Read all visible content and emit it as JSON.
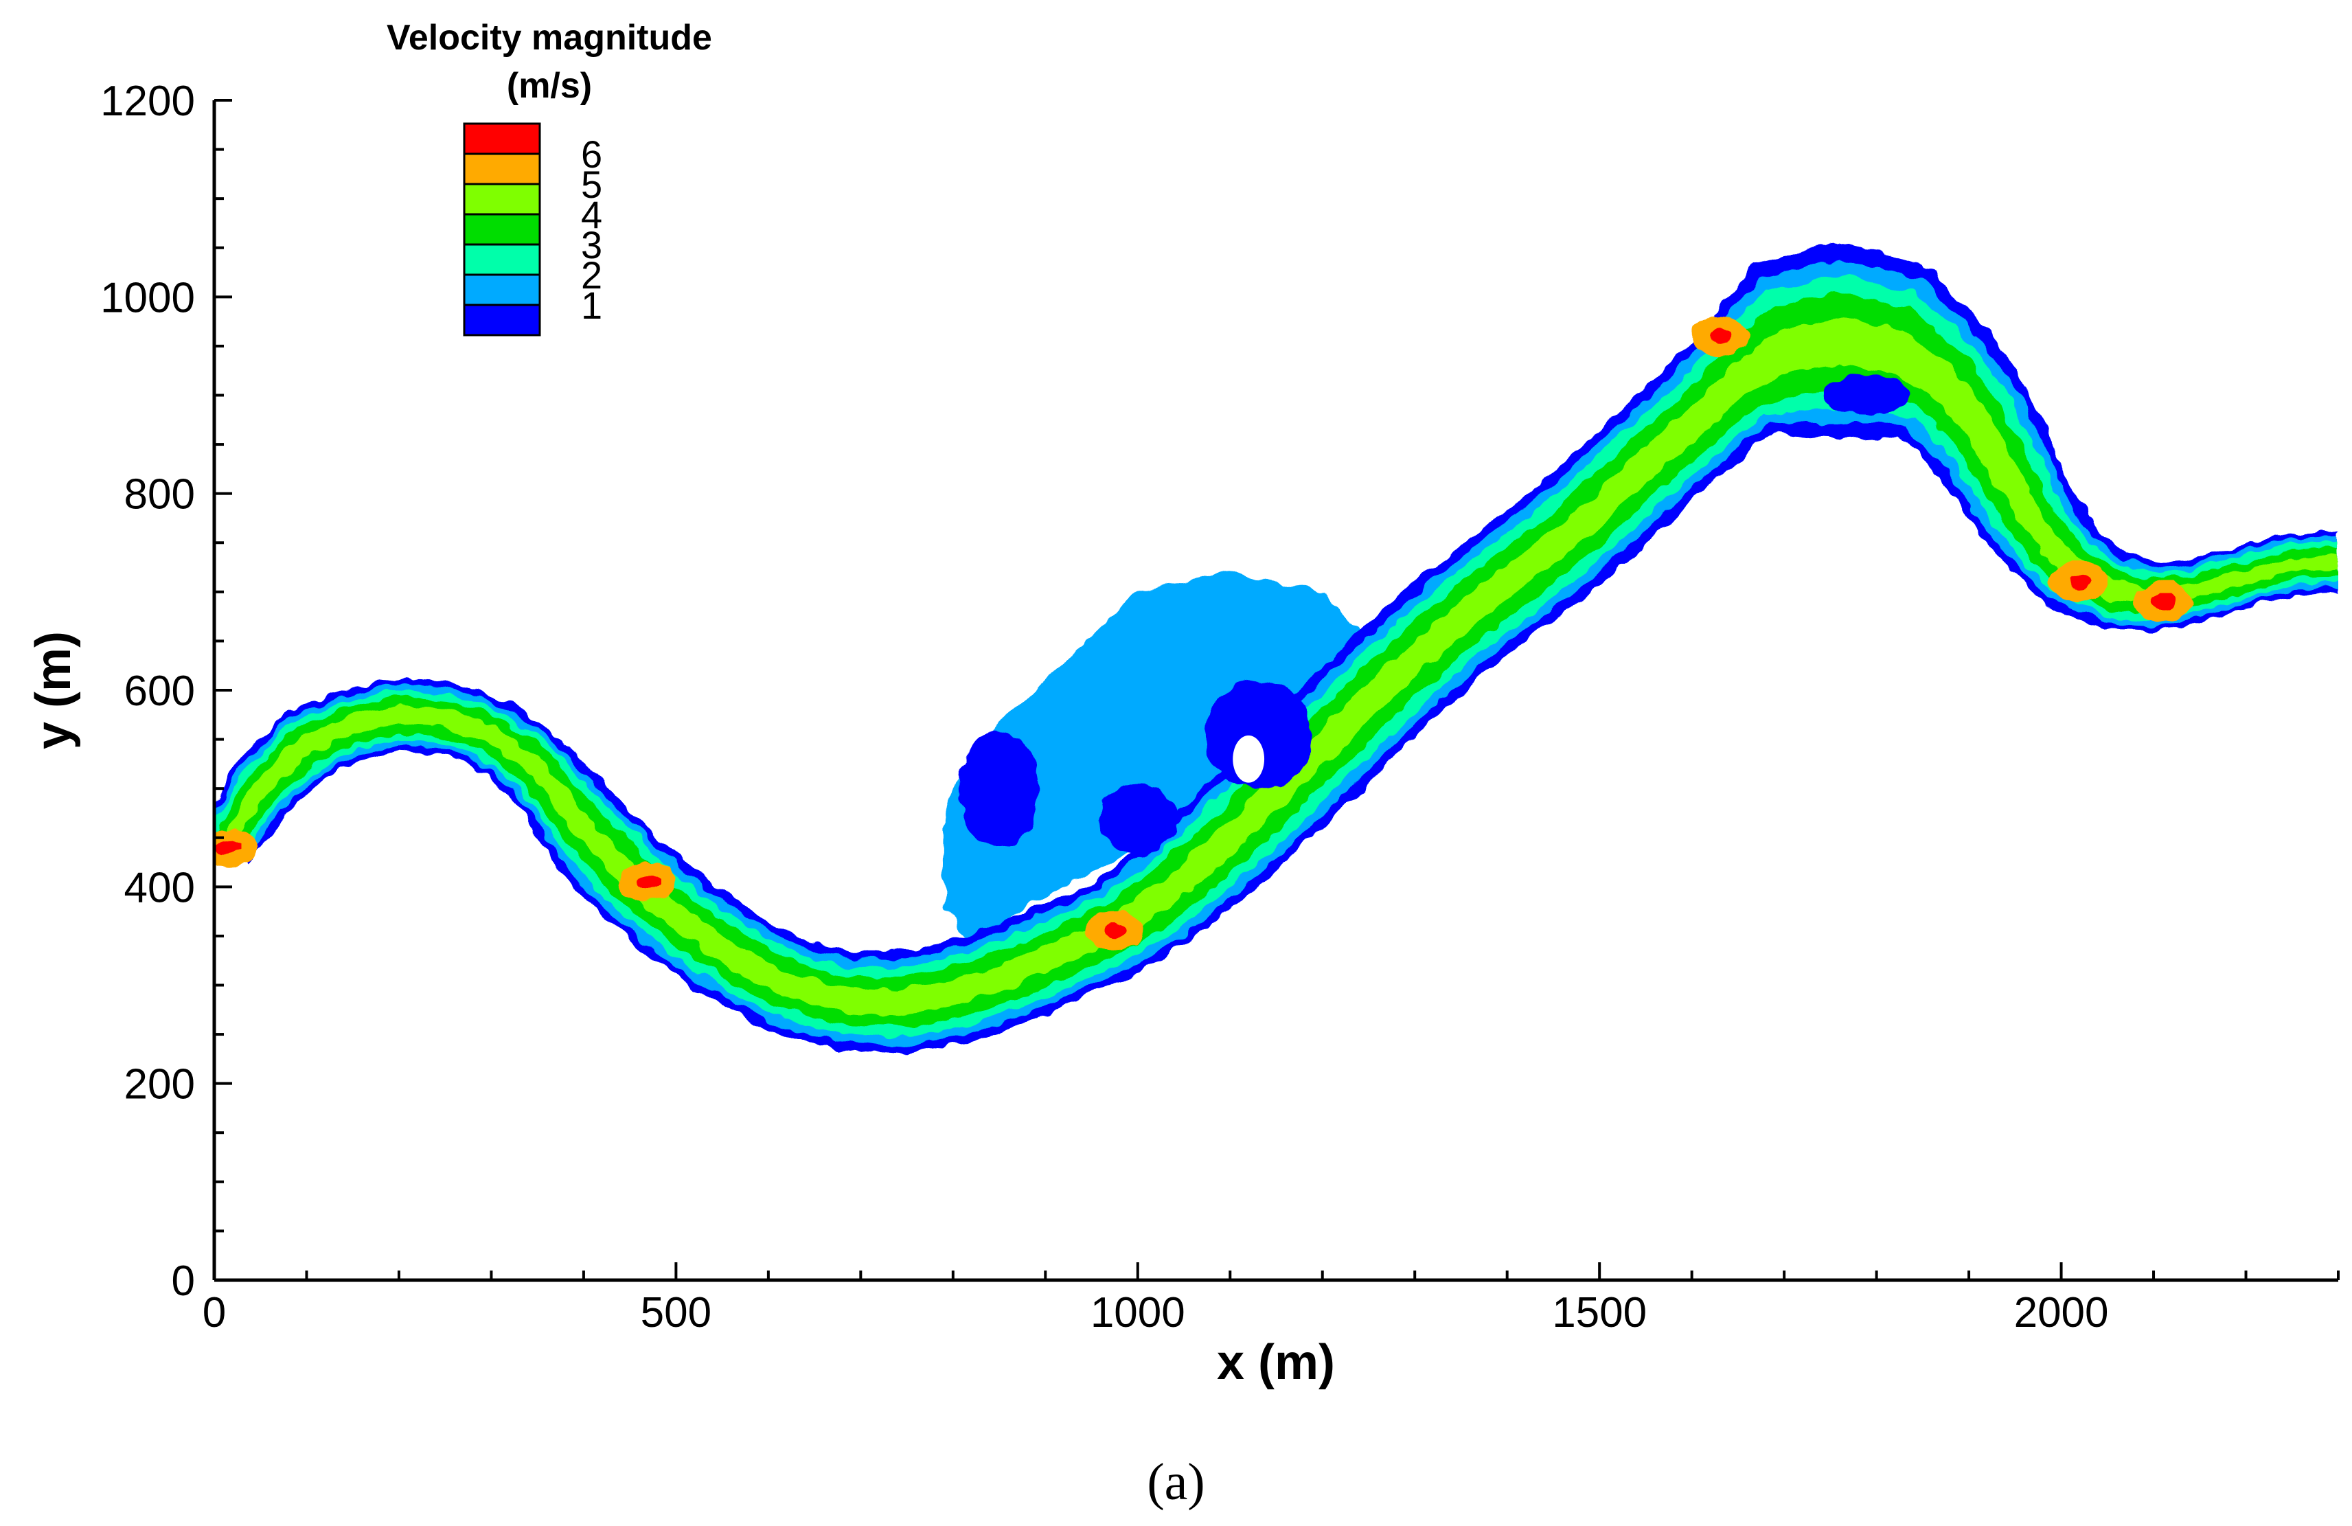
{
  "chart_data": {
    "type": "heatmap",
    "xlabel": "x (m)",
    "ylabel": "y (m)",
    "xlim": [
      0,
      2300
    ],
    "ylim": [
      0,
      1200
    ],
    "x_ticks": [
      0,
      500,
      1000,
      1500,
      2000
    ],
    "y_ticks": [
      0,
      200,
      400,
      600,
      800,
      1000,
      1200
    ],
    "legend": {
      "title_line1": "Velocity magnitude",
      "title_line2": "(m/s)",
      "levels": [
        {
          "label": "",
          "color": "#ff0000"
        },
        {
          "label": "6",
          "color": "#ffaa00"
        },
        {
          "label": "5",
          "color": "#7fff00"
        },
        {
          "label": "4",
          "color": "#00dd00"
        },
        {
          "label": "3",
          "color": "#00ffaa"
        },
        {
          "label": "2",
          "color": "#00aaff"
        },
        {
          "label": "1",
          "color": "#0000ff"
        }
      ],
      "placement": "top-left"
    },
    "river_centerline": [
      [
        10,
        440
      ],
      [
        50,
        500
      ],
      [
        100,
        545
      ],
      [
        150,
        565
      ],
      [
        200,
        575
      ],
      [
        250,
        572
      ],
      [
        300,
        555
      ],
      [
        350,
        520
      ],
      [
        400,
        460
      ],
      [
        450,
        410
      ],
      [
        500,
        370
      ],
      [
        560,
        330
      ],
      [
        620,
        300
      ],
      [
        680,
        285
      ],
      [
        740,
        282
      ],
      [
        800,
        292
      ],
      [
        860,
        310
      ],
      [
        920,
        335
      ],
      [
        980,
        360
      ],
      [
        1040,
        400
      ],
      [
        1100,
        450
      ],
      [
        1160,
        505
      ],
      [
        1220,
        560
      ],
      [
        1280,
        615
      ],
      [
        1340,
        665
      ],
      [
        1400,
        710
      ],
      [
        1450,
        745
      ],
      [
        1500,
        785
      ],
      [
        1550,
        830
      ],
      [
        1600,
        870
      ],
      [
        1650,
        915
      ],
      [
        1700,
        945
      ],
      [
        1760,
        955
      ],
      [
        1820,
        945
      ],
      [
        1870,
        915
      ],
      [
        1910,
        870
      ],
      [
        1940,
        820
      ],
      [
        1970,
        770
      ],
      [
        2010,
        725
      ],
      [
        2060,
        700
      ],
      [
        2110,
        695
      ],
      [
        2160,
        705
      ],
      [
        2210,
        718
      ],
      [
        2250,
        728
      ],
      [
        2300,
        730
      ]
    ],
    "river_half_width": [
      25,
      30,
      32,
      30,
      30,
      30,
      30,
      32,
      38,
      40,
      40,
      40,
      40,
      40,
      42,
      42,
      42,
      42,
      42,
      44,
      46,
      48,
      48,
      48,
      48,
      48,
      48,
      48,
      48,
      48,
      52,
      75,
      80,
      75,
      58,
      52,
      48,
      42,
      38,
      32,
      28,
      25,
      25,
      25,
      25
    ],
    "hotspots": [
      {
        "x": 15,
        "y": 440,
        "value": 6.5
      },
      {
        "x": 470,
        "y": 405,
        "value": 6.2
      },
      {
        "x": 975,
        "y": 355,
        "value": 6.3
      },
      {
        "x": 1630,
        "y": 960,
        "value": 6.1
      },
      {
        "x": 2020,
        "y": 710,
        "value": 6.4
      },
      {
        "x": 2110,
        "y": 690,
        "value": 6.5
      }
    ]
  },
  "panel_label": "(a)"
}
